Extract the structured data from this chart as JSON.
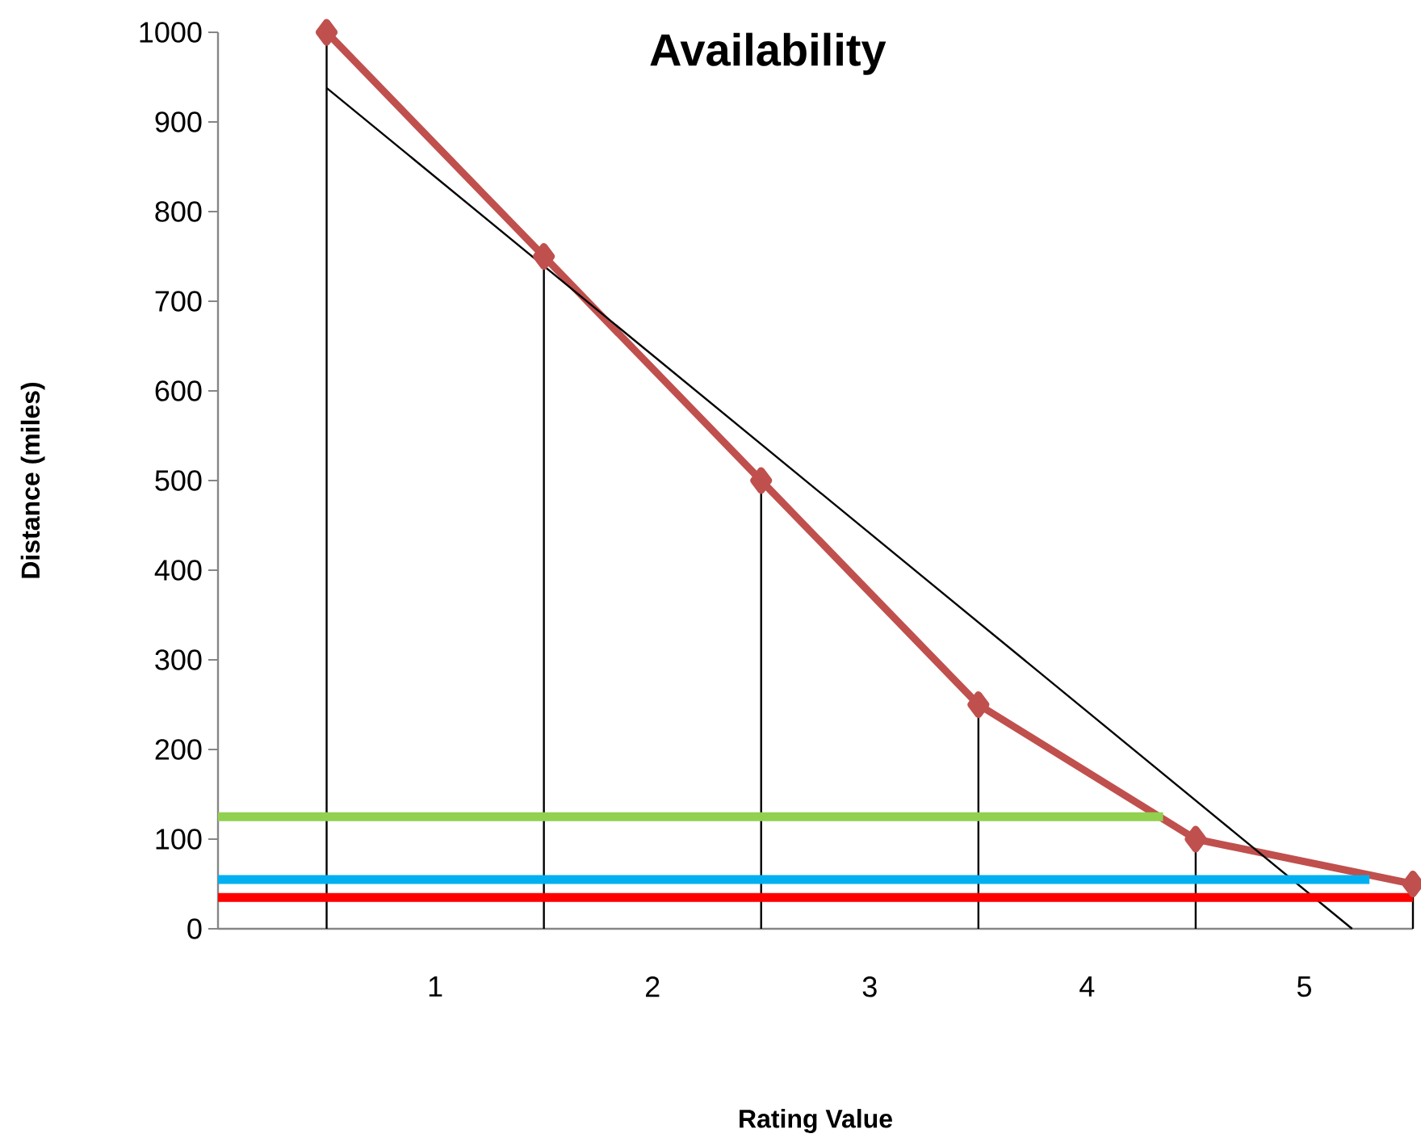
{
  "chart_data": {
    "type": "line",
    "title": "Availability",
    "xlabel": "Rating Value",
    "ylabel": "Distance (miles)",
    "xlim": [
      0,
      5.5
    ],
    "xticks": [
      1,
      2,
      3,
      4,
      5
    ],
    "ylim": [
      0,
      1000
    ],
    "yticks": [
      0,
      100,
      200,
      300,
      400,
      500,
      600,
      700,
      800,
      900,
      1000
    ],
    "series": [
      {
        "color": "#c0504d",
        "marker": "diamond",
        "x": [
          0.5,
          1.5,
          2.5,
          3.5,
          4.5,
          5.5
        ],
        "values": [
          1000,
          750,
          500,
          250,
          100,
          50
        ],
        "errors": [
          [
            0,
            1000
          ],
          [
            0,
            750
          ],
          [
            0,
            500
          ],
          [
            0,
            250
          ],
          [
            0,
            100
          ],
          [
            0,
            50
          ]
        ]
      },
      {
        "color": "#000000",
        "marker": "none",
        "x": [
          0.5,
          5.22
        ],
        "values": [
          938,
          0
        ]
      },
      {
        "color": "#92d050",
        "marker": "none",
        "x": [
          0,
          4.35
        ],
        "values": [
          125,
          125
        ]
      },
      {
        "color": "#00b0f0",
        "marker": "none",
        "x": [
          0,
          5.3
        ],
        "values": [
          55,
          55
        ]
      },
      {
        "color": "#ff0000",
        "marker": "none",
        "x": [
          0,
          5.5
        ],
        "values": [
          35,
          35
        ]
      }
    ]
  }
}
